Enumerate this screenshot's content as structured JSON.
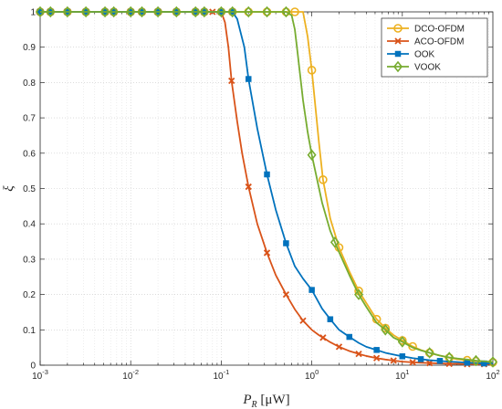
{
  "chart_data": {
    "type": "line",
    "title": "",
    "xlabel": "P_R [μW]",
    "xlabel_main": "P",
    "xlabel_sub": "R",
    "xlabel_unit": " [μW]",
    "ylabel": "ξ",
    "xscale": "log",
    "xlim": [
      0.001,
      100
    ],
    "ylim": [
      0,
      1
    ],
    "grid": true,
    "legend_position": "top-right",
    "x_ticks": [
      {
        "value": 0.001,
        "base": "10",
        "exp": "-3"
      },
      {
        "value": 0.01,
        "base": "10",
        "exp": "-2"
      },
      {
        "value": 0.1,
        "base": "10",
        "exp": "-1"
      },
      {
        "value": 1,
        "base": "10",
        "exp": "0"
      },
      {
        "value": 10,
        "base": "10",
        "exp": "1"
      },
      {
        "value": 100,
        "base": "10",
        "exp": "2"
      }
    ],
    "y_ticks": [
      {
        "value": 0,
        "label": "0"
      },
      {
        "value": 0.1,
        "label": "0.1"
      },
      {
        "value": 0.2,
        "label": "0.2"
      },
      {
        "value": 0.3,
        "label": "0.3"
      },
      {
        "value": 0.4,
        "label": "0.4"
      },
      {
        "value": 0.5,
        "label": "0.5"
      },
      {
        "value": 0.6,
        "label": "0.6"
      },
      {
        "value": 0.7,
        "label": "0.7"
      },
      {
        "value": 0.8,
        "label": "0.8"
      },
      {
        "value": 0.9,
        "label": "0.9"
      },
      {
        "value": 1,
        "label": "1"
      }
    ],
    "series": [
      {
        "name": "DCO-OFDM",
        "color": "#EDB120",
        "marker": "circle",
        "x": [
          0.001,
          0.0013,
          0.002,
          0.0032,
          0.0052,
          0.0065,
          0.01,
          0.0133,
          0.02,
          0.032,
          0.052,
          0.065,
          0.1,
          0.133,
          0.2,
          0.32,
          0.52,
          0.65,
          0.7,
          0.75,
          0.8,
          0.9,
          1.0,
          1.2,
          1.33,
          1.6,
          2.0,
          2.6,
          3.3,
          4.5,
          5.2,
          6.5,
          8.0,
          10,
          13,
          16,
          20,
          26,
          33,
          40,
          50,
          65,
          80,
          100
        ],
        "y": [
          1,
          1,
          1,
          1,
          1,
          1,
          1,
          1,
          1,
          1,
          1,
          1,
          1,
          1,
          1,
          1,
          1,
          1,
          1,
          1,
          1,
          0.93,
          0.835,
          0.63,
          0.525,
          0.415,
          0.333,
          0.265,
          0.21,
          0.155,
          0.13,
          0.105,
          0.085,
          0.07,
          0.053,
          0.043,
          0.035,
          0.027,
          0.021,
          0.017,
          0.014,
          0.011,
          0.009,
          0.008
        ],
        "markers_x": [
          0.001,
          0.0013,
          0.002,
          0.0032,
          0.0052,
          0.0065,
          0.01,
          0.0133,
          0.02,
          0.032,
          0.052,
          0.065,
          0.1,
          0.133,
          0.2,
          0.32,
          0.52,
          0.65,
          1.0,
          1.33,
          2.0,
          3.3,
          5.2,
          6.5,
          10,
          13,
          20,
          33,
          52,
          65,
          100
        ],
        "markers_y": [
          1,
          1,
          1,
          1,
          1,
          1,
          1,
          1,
          1,
          1,
          1,
          1,
          1,
          1,
          1,
          1,
          1,
          1,
          0.835,
          0.525,
          0.333,
          0.21,
          0.13,
          0.105,
          0.07,
          0.053,
          0.035,
          0.021,
          0.014,
          0.011,
          0.008
        ]
      },
      {
        "name": "ACO-OFDM",
        "color": "#D95319",
        "marker": "x",
        "x": [
          0.001,
          0.0013,
          0.002,
          0.0032,
          0.0052,
          0.0065,
          0.01,
          0.0133,
          0.02,
          0.032,
          0.052,
          0.065,
          0.08,
          0.1,
          0.11,
          0.12,
          0.13,
          0.15,
          0.17,
          0.2,
          0.25,
          0.32,
          0.4,
          0.52,
          0.65,
          0.8,
          1.0,
          1.2,
          1.33,
          1.6,
          2.0,
          2.6,
          3.3,
          4.0,
          5.2,
          6.5,
          8.0,
          10,
          13,
          16,
          20,
          26,
          33,
          40,
          52,
          65,
          80,
          100
        ],
        "y": [
          1,
          1,
          1,
          1,
          1,
          1,
          1,
          1,
          1,
          1,
          1,
          1,
          1,
          1,
          0.97,
          0.9,
          0.805,
          0.69,
          0.6,
          0.505,
          0.4,
          0.318,
          0.255,
          0.2,
          0.158,
          0.126,
          0.1,
          0.085,
          0.078,
          0.065,
          0.052,
          0.04,
          0.032,
          0.026,
          0.02,
          0.016,
          0.013,
          0.01,
          0.008,
          0.007,
          0.006,
          0.005,
          0.004,
          0.004,
          0.003,
          0.003,
          0.003,
          0.003
        ],
        "markers_x": [
          0.001,
          0.0013,
          0.002,
          0.0032,
          0.0052,
          0.0065,
          0.01,
          0.0133,
          0.02,
          0.032,
          0.052,
          0.065,
          0.08,
          0.13,
          0.2,
          0.32,
          0.52,
          0.8,
          1.33,
          2.0,
          3.3,
          5.2,
          8.0,
          13,
          20,
          33,
          52,
          80
        ],
        "markers_y": [
          1,
          1,
          1,
          1,
          1,
          1,
          1,
          1,
          1,
          1,
          1,
          1,
          1,
          0.805,
          0.505,
          0.318,
          0.2,
          0.126,
          0.078,
          0.052,
          0.032,
          0.02,
          0.013,
          0.008,
          0.006,
          0.004,
          0.003,
          0.003
        ]
      },
      {
        "name": "OOK",
        "color": "#0072BD",
        "marker": "square",
        "x": [
          0.001,
          0.0013,
          0.002,
          0.0032,
          0.0052,
          0.0065,
          0.01,
          0.0133,
          0.02,
          0.032,
          0.052,
          0.065,
          0.1,
          0.133,
          0.15,
          0.18,
          0.2,
          0.25,
          0.32,
          0.4,
          0.52,
          0.65,
          0.8,
          1.0,
          1.3,
          1.6,
          2.0,
          2.6,
          3.3,
          4.0,
          5.2,
          6.5,
          8.0,
          10,
          13,
          16,
          20,
          26,
          33,
          40,
          52,
          65,
          80,
          100
        ],
        "y": [
          1,
          1,
          1,
          1,
          1,
          1,
          1,
          1,
          1,
          1,
          1,
          1,
          1,
          1,
          0.98,
          0.9,
          0.81,
          0.67,
          0.54,
          0.44,
          0.345,
          0.28,
          0.245,
          0.213,
          0.16,
          0.13,
          0.1,
          0.08,
          0.063,
          0.052,
          0.043,
          0.035,
          0.03,
          0.025,
          0.02,
          0.017,
          0.014,
          0.012,
          0.01,
          0.009,
          0.007,
          0.006,
          0.005,
          0.005
        ],
        "markers_x": [
          0.001,
          0.0013,
          0.002,
          0.0032,
          0.0052,
          0.0065,
          0.01,
          0.0133,
          0.02,
          0.032,
          0.052,
          0.065,
          0.1,
          0.133,
          0.2,
          0.32,
          0.52,
          1.0,
          1.6,
          2.6,
          5.2,
          10,
          16,
          26,
          52,
          80
        ],
        "markers_y": [
          1,
          1,
          1,
          1,
          1,
          1,
          1,
          1,
          1,
          1,
          1,
          1,
          1,
          1,
          0.81,
          0.54,
          0.345,
          0.213,
          0.13,
          0.08,
          0.043,
          0.025,
          0.017,
          0.012,
          0.007,
          0.005
        ]
      },
      {
        "name": "VOOK",
        "color": "#77AC30",
        "marker": "diamond",
        "x": [
          0.001,
          0.0013,
          0.002,
          0.0032,
          0.0052,
          0.0065,
          0.01,
          0.0133,
          0.02,
          0.032,
          0.052,
          0.065,
          0.1,
          0.133,
          0.2,
          0.32,
          0.52,
          0.6,
          0.65,
          0.7,
          0.8,
          0.9,
          1.0,
          1.3,
          1.6,
          1.8,
          2.0,
          2.6,
          3.3,
          4.0,
          5.2,
          6.5,
          8.0,
          10,
          13,
          16,
          20,
          26,
          33,
          40,
          52,
          65,
          80,
          100
        ],
        "y": [
          1,
          1,
          1,
          1,
          1,
          1,
          1,
          1,
          1,
          1,
          1,
          1,
          1,
          1,
          1,
          1,
          1,
          0.99,
          0.95,
          0.88,
          0.75,
          0.66,
          0.595,
          0.46,
          0.38,
          0.348,
          0.32,
          0.255,
          0.2,
          0.165,
          0.12,
          0.1,
          0.078,
          0.066,
          0.05,
          0.042,
          0.035,
          0.027,
          0.022,
          0.019,
          0.016,
          0.013,
          0.011,
          0.009
        ],
        "markers_x": [
          0.001,
          0.0013,
          0.002,
          0.0032,
          0.0052,
          0.0065,
          0.01,
          0.0133,
          0.02,
          0.032,
          0.052,
          0.065,
          0.1,
          0.133,
          0.2,
          0.32,
          0.52,
          1.0,
          1.8,
          3.3,
          6.5,
          10,
          20,
          33,
          65,
          100
        ],
        "markers_y": [
          1,
          1,
          1,
          1,
          1,
          1,
          1,
          1,
          1,
          1,
          1,
          1,
          1,
          1,
          1,
          1,
          1,
          0.595,
          0.348,
          0.2,
          0.1,
          0.066,
          0.035,
          0.022,
          0.013,
          0.009
        ]
      }
    ]
  }
}
